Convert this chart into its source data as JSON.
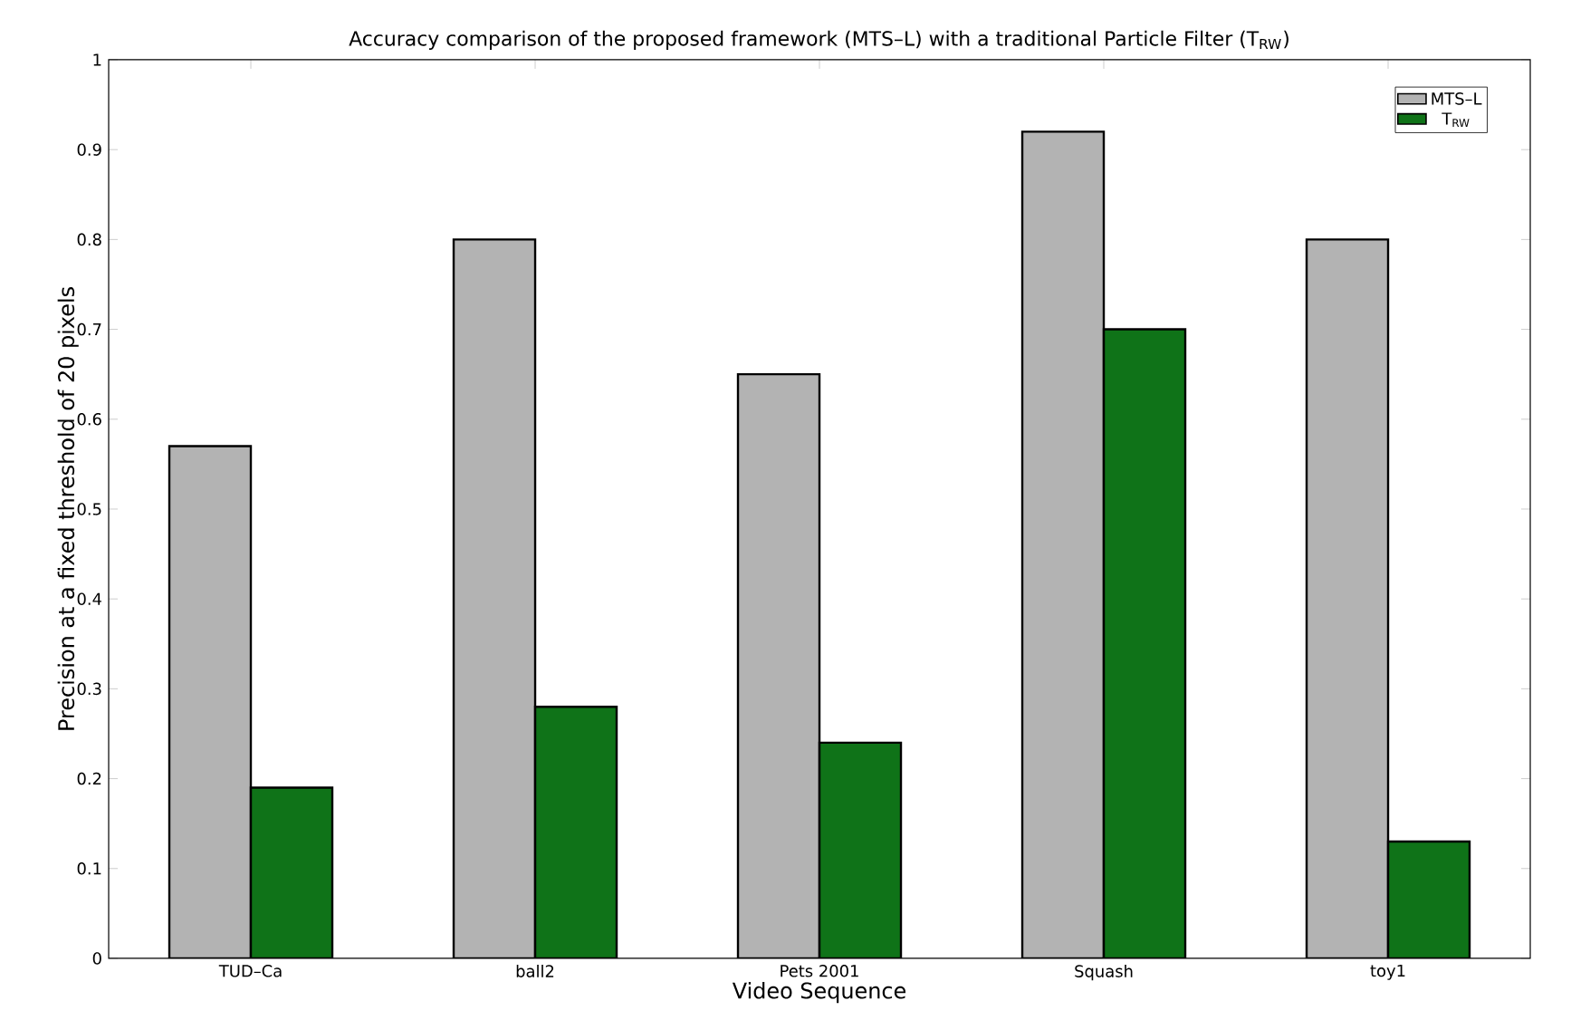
{
  "chart_data": {
    "type": "bar",
    "title": "Accuracy comparison of the proposed framework (MTS–L) with a traditional Particle Filter (T$_{RW}$)",
    "xlabel": "Video Sequence",
    "ylabel": "Precision at a fixed threshold of 20 pixels",
    "categories": [
      "TUD–Ca",
      "ball2",
      "Pets 2001",
      "Squash",
      "toy1"
    ],
    "series": [
      {
        "name": "MTS–L",
        "color": "#b3b3b3",
        "values": [
          0.57,
          0.8,
          0.65,
          0.92,
          0.8
        ]
      },
      {
        "name": "T$_{RW}$",
        "color": "#0f7318",
        "values": [
          0.19,
          0.28,
          0.24,
          0.7,
          0.13
        ]
      }
    ],
    "ylim": [
      0,
      1
    ],
    "yticks": [
      0,
      0.1,
      0.2,
      0.3,
      0.4,
      0.5,
      0.6,
      0.7,
      0.8,
      0.9,
      1
    ],
    "grid": false,
    "legend": "top right"
  }
}
